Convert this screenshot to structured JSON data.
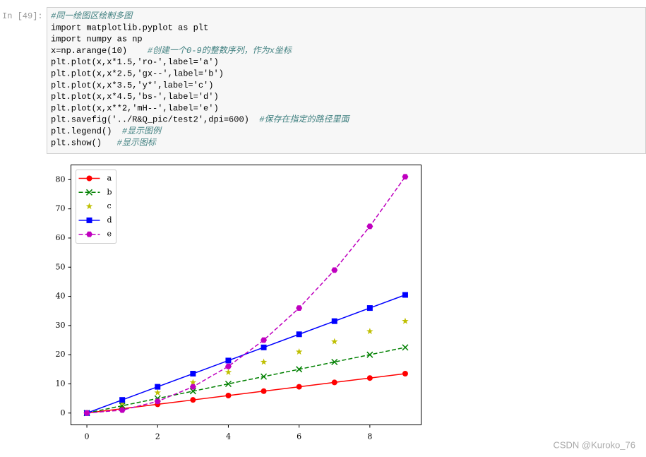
{
  "notebook": {
    "prompt": "In [49]:",
    "code": [
      {
        "comment": "#同一绘图区绘制多图"
      },
      {
        "code": "import matplotlib.pyplot as plt"
      },
      {
        "code": "import numpy as np"
      },
      {
        "code": "x=np.arange(10)    ",
        "comment": "#创建一个0-9的整数序列，作为x坐标"
      },
      {
        "code": "plt.plot(x,x*1.5,'ro-',label='a')"
      },
      {
        "code": "plt.plot(x,x*2.5,'gx--',label='b')"
      },
      {
        "code": "plt.plot(x,x*3.5,'y*',label='c')"
      },
      {
        "code": "plt.plot(x,x*4.5,'bs-',label='d')"
      },
      {
        "code": "plt.plot(x,x**2,'mH--',label='e')"
      },
      {
        "code": "plt.savefig('../R&Q_pic/test2',dpi=600)  ",
        "comment": "#保存在指定的路径里面"
      },
      {
        "code": "plt.legend()  ",
        "comment": "#显示图例"
      },
      {
        "code": "plt.show()   ",
        "comment": "#显示图标"
      }
    ],
    "watermark": "CSDN @Kuroko_76"
  },
  "chart_data": {
    "type": "line",
    "x": [
      0,
      1,
      2,
      3,
      4,
      5,
      6,
      7,
      8,
      9
    ],
    "series": [
      {
        "name": "a",
        "color": "#ff0000",
        "marker": "o",
        "linestyle": "solid",
        "values": [
          0,
          1.5,
          3,
          4.5,
          6,
          7.5,
          9,
          10.5,
          12,
          13.5
        ]
      },
      {
        "name": "b",
        "color": "#008000",
        "marker": "x",
        "linestyle": "dashed",
        "values": [
          0,
          2.5,
          5,
          7.5,
          10,
          12.5,
          15,
          17.5,
          20,
          22.5
        ]
      },
      {
        "name": "c",
        "color": "#bfbf00",
        "marker": "*",
        "linestyle": "none",
        "values": [
          0,
          3.5,
          7,
          10.5,
          14,
          17.5,
          21,
          24.5,
          28,
          31.5
        ]
      },
      {
        "name": "d",
        "color": "#0000ff",
        "marker": "s",
        "linestyle": "solid",
        "values": [
          0,
          4.5,
          9,
          13.5,
          18,
          22.5,
          27,
          31.5,
          36,
          40.5
        ]
      },
      {
        "name": "e",
        "color": "#bf00bf",
        "marker": "H",
        "linestyle": "dashed",
        "values": [
          0,
          1,
          4,
          9,
          16,
          25,
          36,
          49,
          64,
          81
        ]
      }
    ],
    "xlim": [
      -0.45,
      9.45
    ],
    "xticks": [
      0,
      2,
      4,
      6,
      8
    ],
    "ylim": [
      -4.05,
      85.05
    ],
    "yticks": [
      0,
      10,
      20,
      30,
      40,
      50,
      60,
      70,
      80
    ],
    "legend": "upper left"
  }
}
